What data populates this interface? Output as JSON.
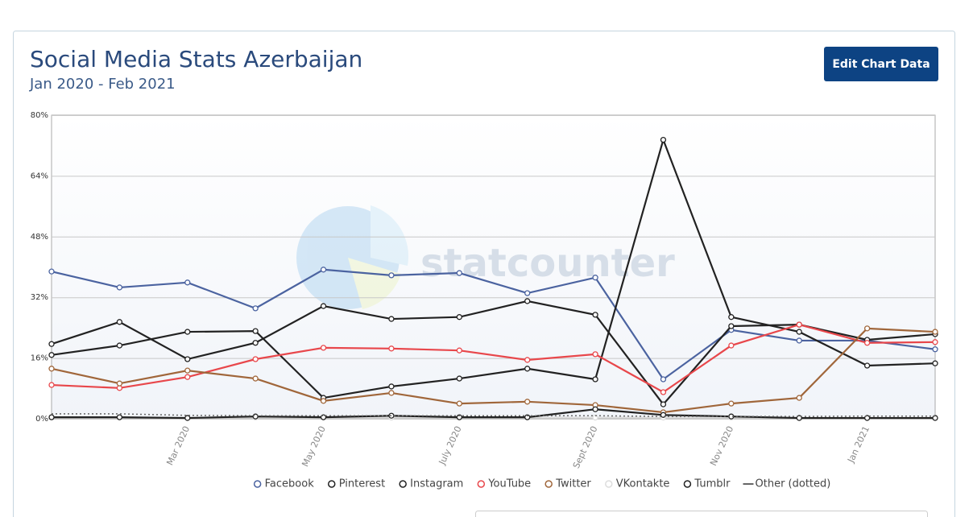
{
  "header": {
    "title": "Social Media Stats Azerbaijan",
    "subtitle": "Jan 2020 - Feb 2021"
  },
  "button": {
    "label": "Edit Chart Data"
  },
  "watermark": "statcounter",
  "chart_data": {
    "type": "line",
    "categories": [
      null,
      null,
      "Mar 2020",
      null,
      "May 2020",
      null,
      "July 2020",
      null,
      "Sept 2020",
      null,
      "Nov 2020",
      null,
      "Jan 2021",
      null
    ],
    "ylim": [
      0,
      80
    ],
    "yticks": [
      {
        "value": 0,
        "label": "0%"
      },
      {
        "value": 16,
        "label": "16%"
      },
      {
        "value": 32,
        "label": "32%"
      },
      {
        "value": 48,
        "label": "48%"
      },
      {
        "value": 64,
        "label": "64%"
      },
      {
        "value": 80,
        "label": "80%"
      }
    ],
    "grid": true,
    "legend": "bottom",
    "series": [
      {
        "name": "Facebook",
        "color": "#4b63a0",
        "values": [
          38.8,
          34.6,
          35.9,
          29.1,
          39.3,
          37.8,
          38.4,
          33.1,
          37.2,
          10.4,
          23.4,
          20.6,
          20.6,
          18.3
        ]
      },
      {
        "name": "Pinterest",
        "color": "#222222",
        "values": [
          19.7,
          25.5,
          15.7,
          20.0,
          29.7,
          26.3,
          26.8,
          31.0,
          27.4,
          3.8,
          24.4,
          24.8,
          20.8,
          22.3
        ]
      },
      {
        "name": "Instagram",
        "color": "#222222",
        "values": [
          16.8,
          19.3,
          22.9,
          23.1,
          5.5,
          8.5,
          10.6,
          13.2,
          10.4,
          73.5,
          26.8,
          22.9,
          14.0,
          14.6
        ]
      },
      {
        "name": "YouTube",
        "color": "#e8474b",
        "values": [
          8.9,
          8.1,
          11.0,
          15.7,
          18.7,
          18.5,
          18.0,
          15.5,
          17.0,
          7.0,
          19.3,
          24.8,
          20.0,
          20.2
        ]
      },
      {
        "name": "Twitter",
        "color": "#a0663a",
        "values": [
          13.2,
          9.3,
          12.7,
          10.6,
          4.7,
          6.8,
          4.0,
          4.5,
          3.6,
          1.7,
          4.0,
          5.5,
          23.8,
          22.9
        ]
      },
      {
        "name": "VKontakte",
        "color": "#dddddd",
        "values": [
          0.3,
          0.3,
          0.3,
          0.3,
          0.3,
          0.3,
          0.3,
          0.3,
          0.3,
          0.3,
          0.3,
          0.3,
          0.3,
          0.3
        ]
      },
      {
        "name": "Tumblr",
        "color": "#222222",
        "values": [
          0.4,
          0.4,
          0.2,
          0.6,
          0.4,
          0.8,
          0.4,
          0.4,
          2.5,
          1.0,
          0.6,
          0.2,
          0.2,
          0.2
        ]
      },
      {
        "name": "Other (dotted)",
        "color": "#666666",
        "dash": "dotted",
        "markers": false,
        "values": [
          1.3,
          1.3,
          0.9,
          0.8,
          0.8,
          0.8,
          0.8,
          0.8,
          0.8,
          0.6,
          0.6,
          0.6,
          0.7,
          0.7
        ]
      }
    ]
  }
}
